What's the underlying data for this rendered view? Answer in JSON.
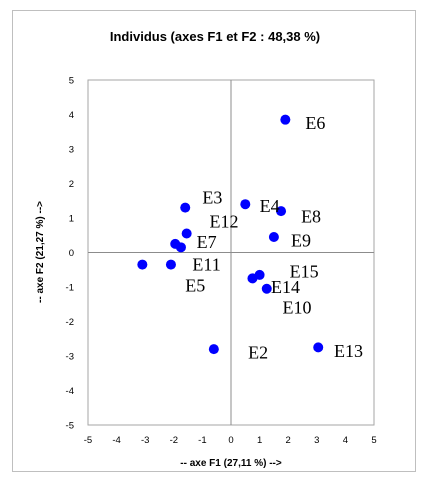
{
  "chart_data": {
    "type": "scatter",
    "title": "Individus (axes F1 et F2 : 48,38 %)",
    "xlabel": "-- axe F1 (27,11 %) -->",
    "ylabel": "-- axe F2 (21,27 %) -->",
    "xlim": [
      -5,
      5
    ],
    "ylim": [
      -5,
      5
    ],
    "xticks": [
      -5,
      -4,
      -3,
      -2,
      -1,
      0,
      1,
      2,
      3,
      4,
      5
    ],
    "yticks": [
      -5,
      -4,
      -3,
      -2,
      -1,
      0,
      1,
      2,
      3,
      4,
      5
    ],
    "marker_color": "#0000ff",
    "points": [
      {
        "label": "E2",
        "x": -0.6,
        "y": -2.8,
        "lx": 0.6,
        "ly": -2.9
      },
      {
        "label": "E3",
        "x": -1.6,
        "y": 1.3,
        "lx": -1.0,
        "ly": 1.6
      },
      {
        "label": "E4",
        "x": 0.5,
        "y": 1.4,
        "lx": 1.0,
        "ly": 1.35
      },
      {
        "label": "E5",
        "x": -3.1,
        "y": -0.35,
        "lx": -1.6,
        "ly": -0.95
      },
      {
        "label": "E6",
        "x": 1.9,
        "y": 3.85,
        "lx": 2.6,
        "ly": 3.75
      },
      {
        "label": "E7",
        "x": -1.55,
        "y": 0.55,
        "lx": -1.2,
        "ly": 0.3
      },
      {
        "label": "E8",
        "x": 1.75,
        "y": 1.2,
        "lx": 2.45,
        "ly": 1.05
      },
      {
        "label": "E9",
        "x": 1.5,
        "y": 0.45,
        "lx": 2.1,
        "ly": 0.35
      },
      {
        "label": "E10",
        "x": 1.25,
        "y": -1.05,
        "lx": 1.8,
        "ly": -1.6
      },
      {
        "label": "E11",
        "x": -2.1,
        "y": -0.35,
        "lx": -1.35,
        "ly": -0.35
      },
      {
        "label": "E12",
        "x": -1.95,
        "y": 0.25,
        "lx": -0.75,
        "ly": 0.9
      },
      {
        "label": "E13",
        "x": 3.05,
        "y": -2.75,
        "lx": 3.6,
        "ly": -2.85
      },
      {
        "label": "E14",
        "x": 0.75,
        "y": -0.75,
        "lx": 1.4,
        "ly": -1.0
      },
      {
        "label": "E15",
        "x": 1.0,
        "y": -0.65,
        "lx": 2.05,
        "ly": -0.55
      },
      {
        "label": "",
        "x": -1.75,
        "y": 0.15
      }
    ]
  }
}
